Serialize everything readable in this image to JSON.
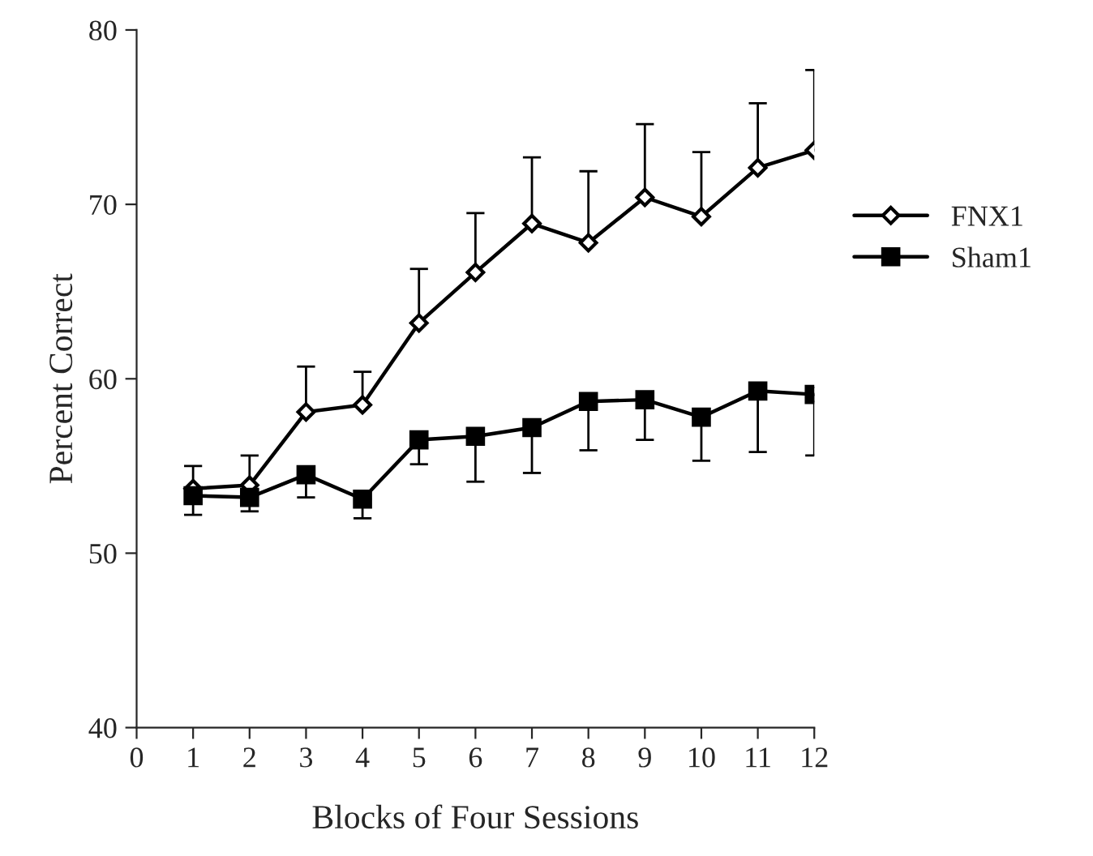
{
  "chart_data": {
    "type": "line",
    "xlabel": "Blocks of Four Sessions",
    "ylabel": "Percent Correct",
    "x": [
      1,
      2,
      3,
      4,
      5,
      6,
      7,
      8,
      9,
      10,
      11,
      12
    ],
    "xlim": [
      0,
      12
    ],
    "xticks": [
      0,
      1,
      2,
      3,
      4,
      5,
      6,
      7,
      8,
      9,
      10,
      11,
      12
    ],
    "ylim": [
      40,
      80
    ],
    "yticks": [
      40,
      50,
      60,
      70,
      80
    ],
    "grid": false,
    "legend": "right",
    "line_style": "solid",
    "series": [
      {
        "name": "FNX1",
        "color": "#000000",
        "marker": "diamond",
        "values": [
          53.7,
          53.9,
          58.1,
          58.5,
          63.2,
          66.1,
          68.9,
          67.8,
          70.4,
          69.3,
          72.1,
          73.1
        ],
        "errors": [
          [
            53.7,
            55.0
          ],
          [
            53.9,
            55.6
          ],
          [
            58.1,
            60.7
          ],
          [
            58.5,
            60.4
          ],
          [
            63.2,
            66.3
          ],
          [
            66.1,
            69.5
          ],
          [
            68.9,
            72.7
          ],
          [
            67.8,
            71.9
          ],
          [
            70.4,
            74.6
          ],
          [
            69.3,
            73.0
          ],
          [
            72.1,
            75.8
          ],
          [
            73.1,
            77.7
          ]
        ]
      },
      {
        "name": "Sham1",
        "color": "#000000",
        "marker": "square",
        "values": [
          53.3,
          53.2,
          54.5,
          53.1,
          56.5,
          56.7,
          57.2,
          58.7,
          58.8,
          57.8,
          59.3,
          59.1
        ],
        "errors": [
          [
            52.2,
            53.3
          ],
          [
            52.4,
            53.2
          ],
          [
            53.2,
            54.5
          ],
          [
            52.0,
            53.1
          ],
          [
            55.1,
            56.5
          ],
          [
            54.1,
            56.7
          ],
          [
            54.6,
            57.2
          ],
          [
            55.9,
            58.7
          ],
          [
            56.5,
            58.8
          ],
          [
            55.3,
            57.8
          ],
          [
            55.8,
            59.3
          ],
          [
            55.6,
            59.1
          ]
        ]
      }
    ]
  }
}
